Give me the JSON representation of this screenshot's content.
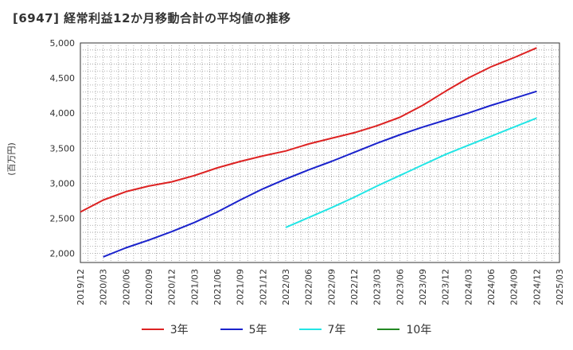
{
  "title": "[6947]  経常利益12か月移動合計の平均値の推移",
  "chart_data": {
    "type": "line",
    "ylabel": "(百万円)",
    "ylim": [
      1870,
      5000
    ],
    "yticks": [
      2000,
      2500,
      3000,
      3500,
      4000,
      4500,
      5000
    ],
    "ytick_labels": [
      "2,000",
      "2,500",
      "3,000",
      "3,500",
      "4,000",
      "4,500",
      "5,000"
    ],
    "xticks": [
      "2019/12",
      "2020/03",
      "2020/06",
      "2020/09",
      "2020/12",
      "2021/03",
      "2021/06",
      "2021/09",
      "2021/12",
      "2022/03",
      "2022/06",
      "2022/09",
      "2022/12",
      "2023/03",
      "2023/06",
      "2023/09",
      "2023/12",
      "2024/03",
      "2024/06",
      "2024/09",
      "2024/12",
      "2025/03"
    ],
    "grid": true,
    "legend_position": "bottom",
    "series": [
      {
        "name": "3年",
        "color": "#dd2222",
        "x": [
          "2019/12",
          "2020/03",
          "2020/06",
          "2020/09",
          "2020/12",
          "2021/03",
          "2021/06",
          "2021/09",
          "2021/12",
          "2022/03",
          "2022/06",
          "2022/09",
          "2022/12",
          "2023/03",
          "2023/06",
          "2023/09",
          "2023/12",
          "2024/03",
          "2024/06",
          "2024/09",
          "2024/12"
        ],
        "values": [
          2590,
          2760,
          2880,
          2960,
          3020,
          3110,
          3220,
          3310,
          3390,
          3460,
          3560,
          3640,
          3720,
          3820,
          3940,
          4110,
          4310,
          4500,
          4660,
          4790,
          4930
        ]
      },
      {
        "name": "5年",
        "color": "#1a22cc",
        "x": [
          "2020/03",
          "2020/06",
          "2020/09",
          "2020/12",
          "2021/03",
          "2021/06",
          "2021/09",
          "2021/12",
          "2022/03",
          "2022/06",
          "2022/09",
          "2022/12",
          "2023/03",
          "2023/06",
          "2023/09",
          "2023/12",
          "2024/03",
          "2024/06",
          "2024/09",
          "2024/12"
        ],
        "values": [
          1950,
          2080,
          2190,
          2310,
          2440,
          2590,
          2760,
          2920,
          3060,
          3190,
          3310,
          3440,
          3570,
          3690,
          3800,
          3900,
          4000,
          4110,
          4210,
          4310
        ]
      },
      {
        "name": "7年",
        "color": "#22e5e5",
        "x": [
          "2022/03",
          "2022/06",
          "2022/09",
          "2022/12",
          "2023/03",
          "2023/06",
          "2023/09",
          "2023/12",
          "2024/03",
          "2024/06",
          "2024/09",
          "2024/12"
        ],
        "values": [
          2370,
          2510,
          2650,
          2800,
          2960,
          3110,
          3260,
          3410,
          3540,
          3670,
          3800,
          3930
        ]
      },
      {
        "name": "10年",
        "color": "#228822",
        "x": [],
        "values": []
      }
    ]
  }
}
